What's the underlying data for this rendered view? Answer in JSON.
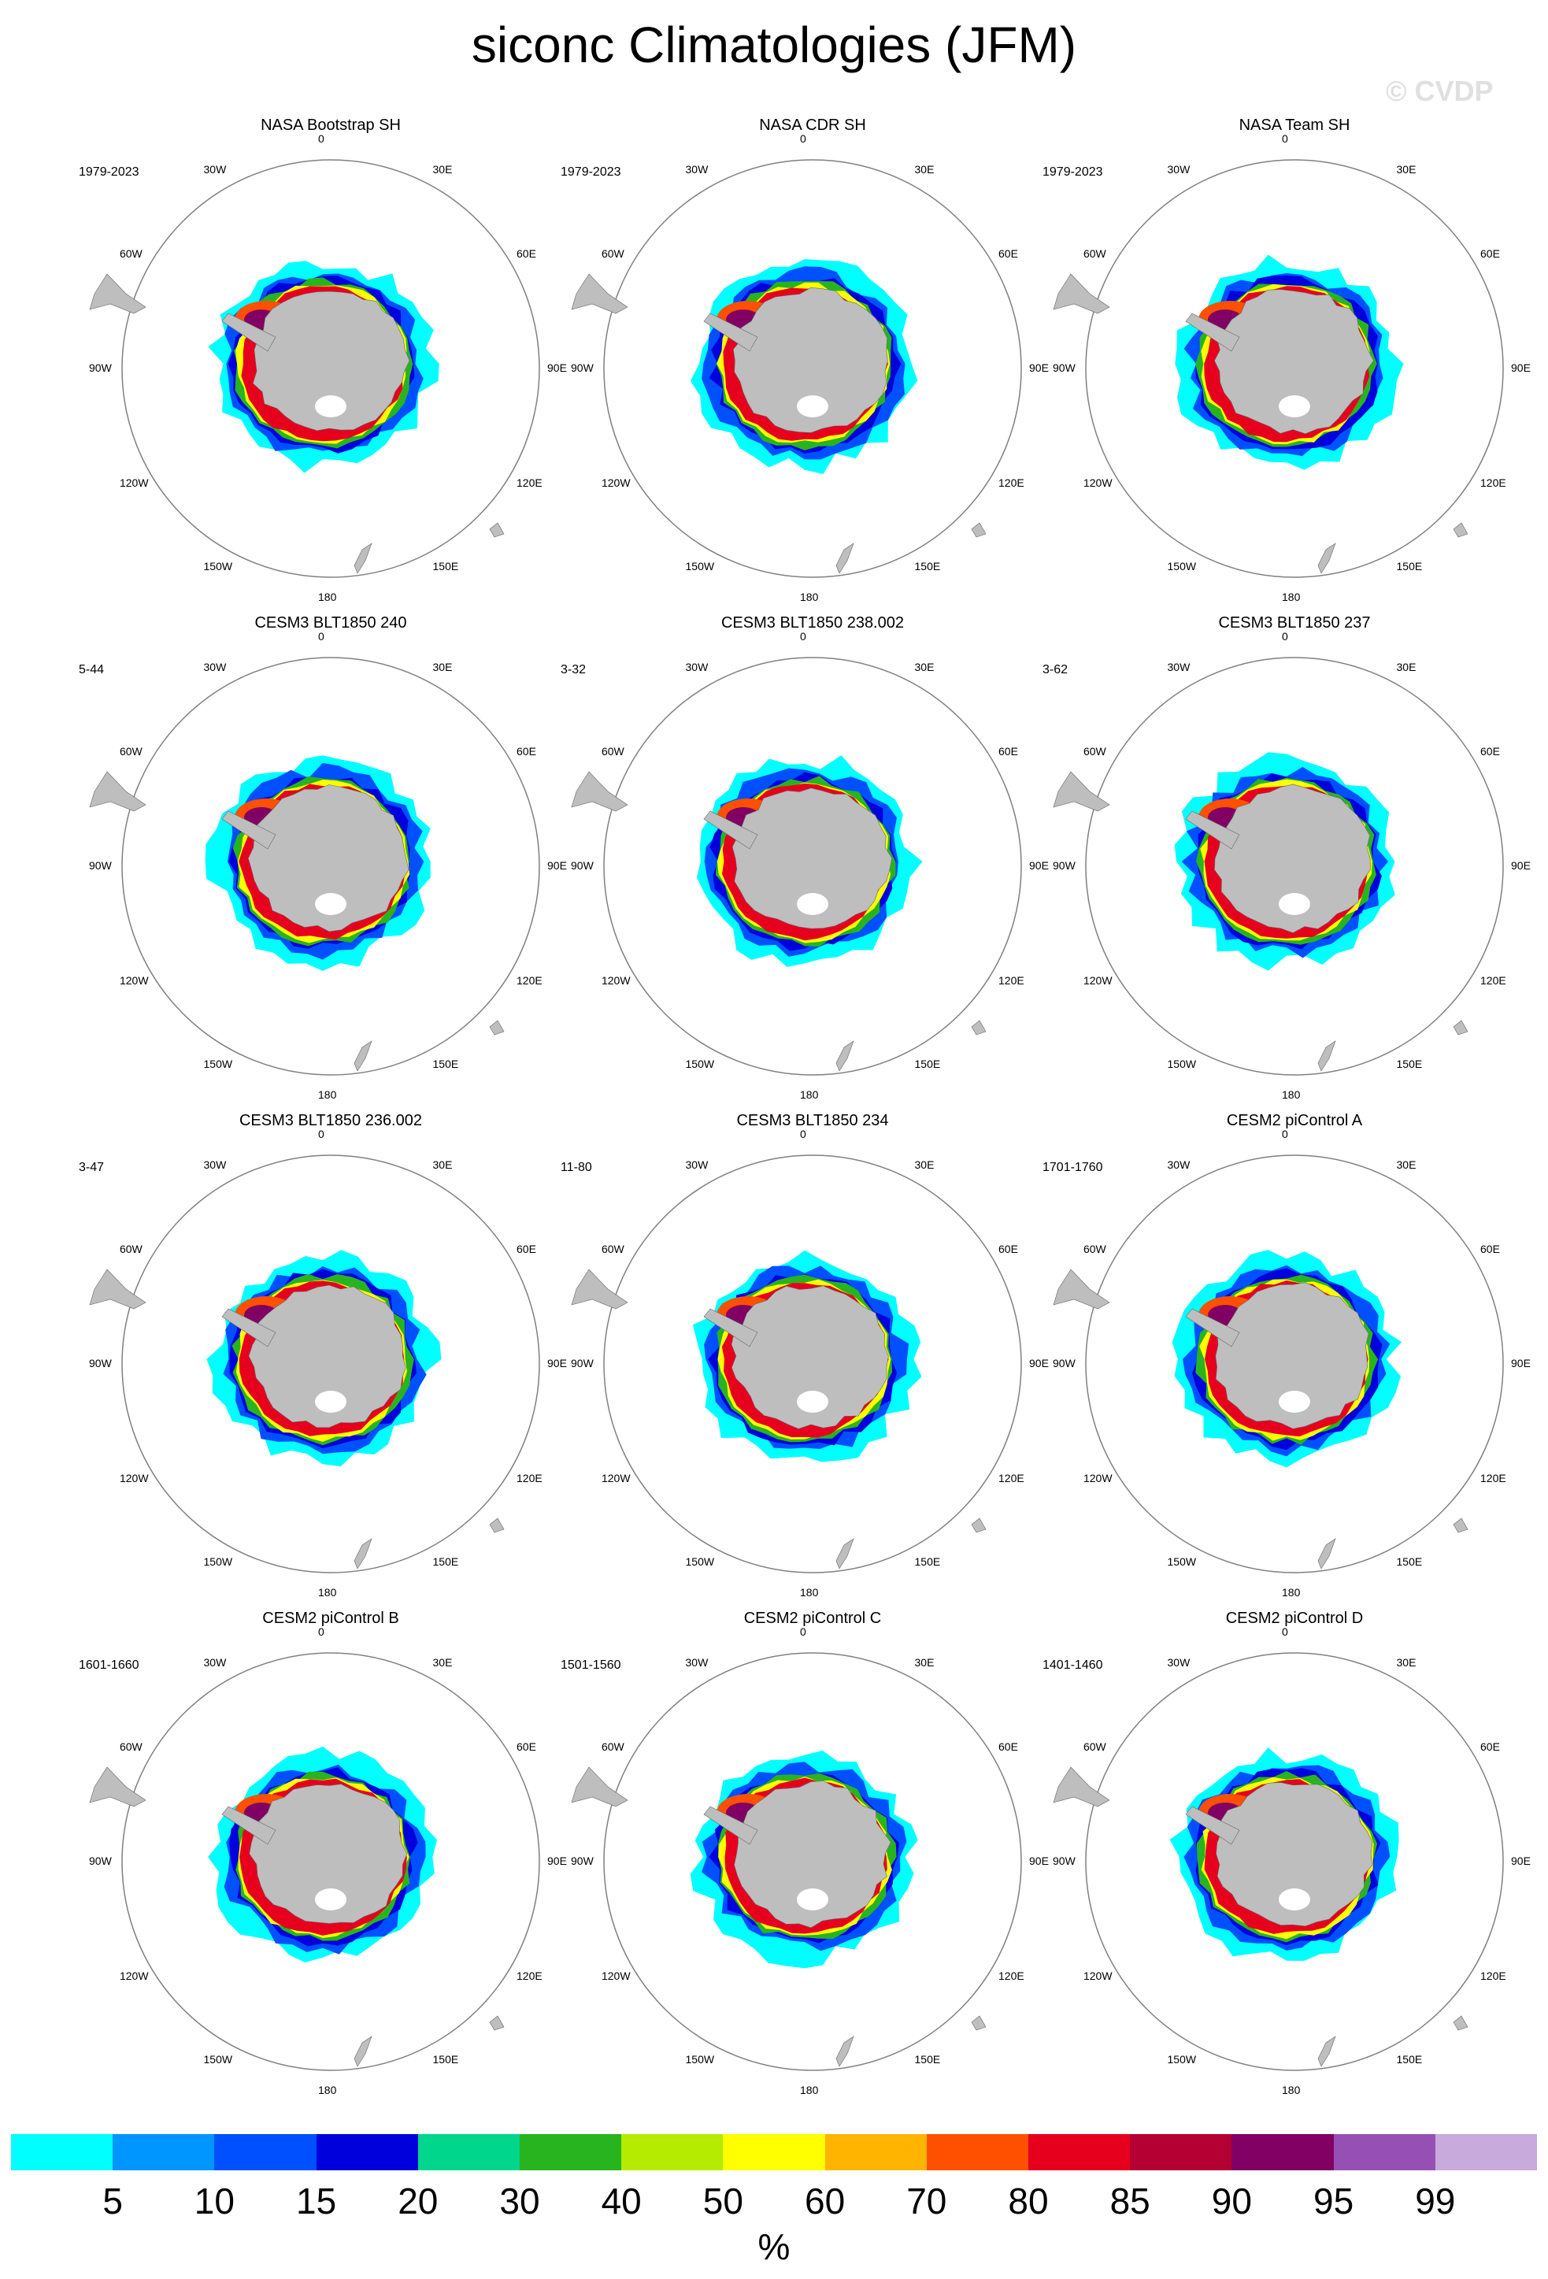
{
  "title": "siconc Climatologies (JFM)",
  "watermark": "© CVDP",
  "lon_labels": [
    "0",
    "30E",
    "60E",
    "90E",
    "120E",
    "150E",
    "180",
    "150W",
    "120W",
    "90W",
    "60W",
    "30W"
  ],
  "panels": [
    {
      "title": "NASA Bootstrap SH",
      "period": "1979-2023"
    },
    {
      "title": "NASA CDR SH",
      "period": "1979-2023"
    },
    {
      "title": "NASA Team SH",
      "period": "1979-2023"
    },
    {
      "title": "CESM3 BLT1850 240",
      "period": "5-44"
    },
    {
      "title": "CESM3 BLT1850 238.002",
      "period": "3-32"
    },
    {
      "title": "CESM3 BLT1850 237",
      "period": "3-62"
    },
    {
      "title": "CESM3 BLT1850 236.002",
      "period": "3-47"
    },
    {
      "title": "CESM3 BLT1850 234",
      "period": "11-80"
    },
    {
      "title": "CESM2 piControl A",
      "period": "1701-1760"
    },
    {
      "title": "CESM2 piControl B",
      "period": "1601-1660"
    },
    {
      "title": "CESM2 piControl C",
      "period": "1501-1560"
    },
    {
      "title": "CESM2 piControl D",
      "period": "1401-1460"
    }
  ],
  "colorbar": {
    "labels": [
      "5",
      "10",
      "15",
      "20",
      "30",
      "40",
      "50",
      "60",
      "70",
      "80",
      "85",
      "90",
      "95",
      "99"
    ],
    "colors": [
      "#00ffff",
      "#0096ff",
      "#0050ff",
      "#0000dc",
      "#00d78c",
      "#28b41e",
      "#b4eb00",
      "#ffff00",
      "#ffb400",
      "#ff5000",
      "#e6001e",
      "#b40032",
      "#820064",
      "#9650b4",
      "#c8aadc"
    ],
    "unit": "%"
  },
  "land_color": "#bebebe"
}
